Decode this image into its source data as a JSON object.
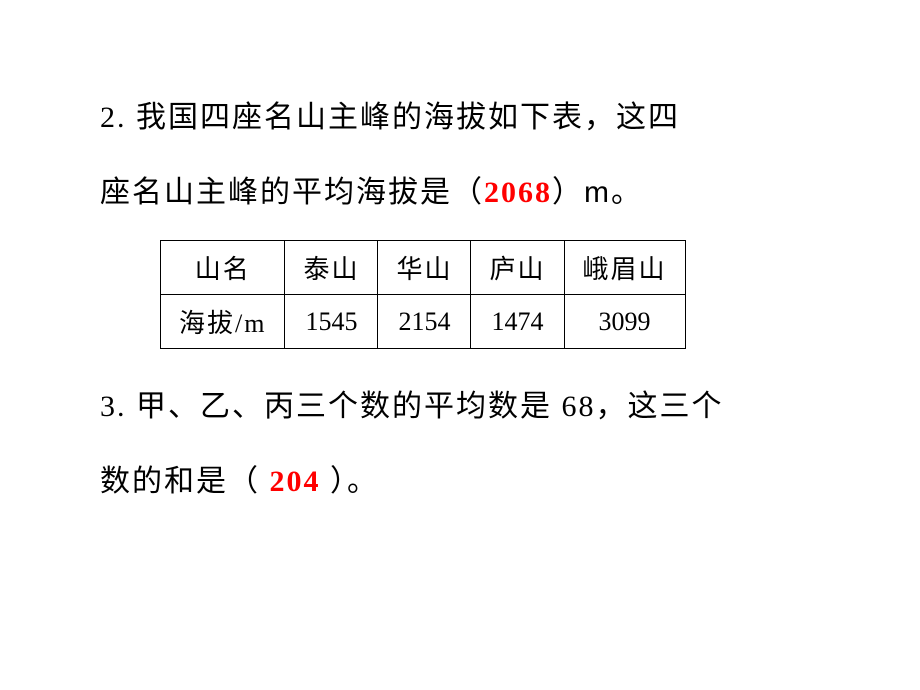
{
  "question2": {
    "number": "2.",
    "text_part1": "我国四座名山主峰的海拔如下表，这四",
    "text_part2": "座名山主峰的平均海拔是（",
    "answer": "2068",
    "text_part3": "）",
    "unit": "m",
    "text_part4": "。"
  },
  "table": {
    "header_label": "山名",
    "row_label": "海拔/m",
    "columns": [
      "泰山",
      "华山",
      "庐山",
      "峨眉山"
    ],
    "values": [
      "1545",
      "2154",
      "1474",
      "3099"
    ],
    "border_color": "#000000",
    "cell_fontsize": 26
  },
  "question3": {
    "number": "3.",
    "text_part1": "甲、乙、丙三个数的平均数是",
    "value1": "68",
    "text_part2": "，这三个",
    "text_part3": "数的和是（",
    "answer": "204",
    "text_part4": "）。"
  },
  "colors": {
    "text": "#000000",
    "answer": "#ff0000",
    "background": "#ffffff"
  },
  "typography": {
    "body_fontsize": 30,
    "line_height": 2.5
  }
}
